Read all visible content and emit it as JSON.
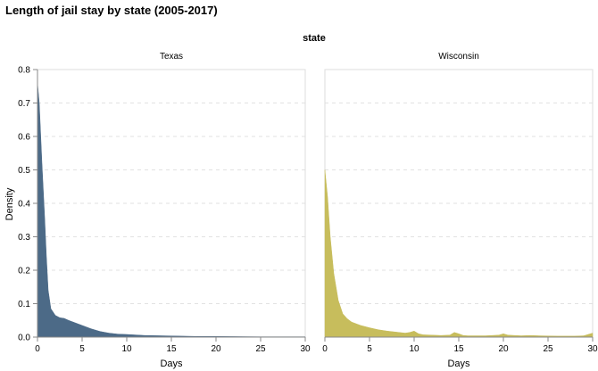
{
  "chart_data": {
    "type": "area",
    "title": "Length of jail stay by state (2005-2017)",
    "facet_header": "state",
    "xlabel": "Days",
    "ylabel": "Density",
    "xlim": [
      0,
      30
    ],
    "ylim": [
      0,
      0.8
    ],
    "x_ticks": [
      0,
      5,
      10,
      15,
      20,
      25,
      30
    ],
    "y_ticks": [
      0.0,
      0.1,
      0.2,
      0.3,
      0.4,
      0.5,
      0.6,
      0.7,
      0.8
    ],
    "grid": true,
    "panels": [
      {
        "name": "Texas",
        "color": "#4c6a87",
        "x": [
          0,
          0.2,
          0.5,
          0.8,
          1.0,
          1.2,
          1.5,
          2,
          2.5,
          3,
          3.5,
          4,
          5,
          6,
          7,
          8,
          9,
          10,
          12,
          14,
          16,
          18,
          20,
          25,
          30
        ],
        "y": [
          0.76,
          0.7,
          0.52,
          0.36,
          0.24,
          0.14,
          0.085,
          0.065,
          0.058,
          0.056,
          0.05,
          0.045,
          0.035,
          0.025,
          0.017,
          0.012,
          0.009,
          0.008,
          0.005,
          0.004,
          0.003,
          0.002,
          0.002,
          0.001,
          0.001
        ]
      },
      {
        "name": "Wisconsin",
        "color": "#c7bd5c",
        "x": [
          0,
          0.3,
          0.6,
          1.0,
          1.5,
          2,
          2.5,
          3,
          3.5,
          4,
          5,
          6,
          7,
          8,
          9,
          9.5,
          10,
          10.5,
          11,
          12,
          13,
          14,
          14.5,
          15,
          15.5,
          16,
          18,
          19.5,
          20,
          20.5,
          22,
          23,
          24,
          26,
          28,
          29,
          29.5,
          30
        ],
        "y": [
          0.5,
          0.42,
          0.3,
          0.19,
          0.11,
          0.07,
          0.055,
          0.045,
          0.04,
          0.035,
          0.028,
          0.022,
          0.018,
          0.015,
          0.012,
          0.014,
          0.018,
          0.01,
          0.007,
          0.006,
          0.005,
          0.006,
          0.014,
          0.01,
          0.005,
          0.004,
          0.004,
          0.006,
          0.01,
          0.006,
          0.004,
          0.005,
          0.004,
          0.003,
          0.003,
          0.004,
          0.008,
          0.012
        ]
      }
    ]
  }
}
